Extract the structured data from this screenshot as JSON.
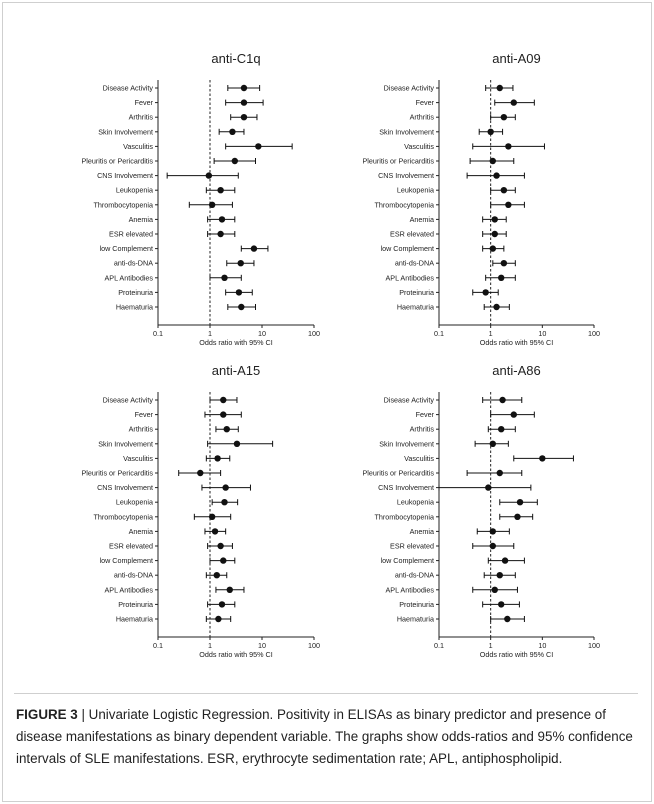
{
  "categories": [
    "Disease Activity",
    "Fever",
    "Arthritis",
    "Skin Involvement",
    "Vasculitis",
    "Pleuritis or Pericarditis",
    "CNS Involvement",
    "Leukopenia",
    "Thrombocytopenia",
    "Anemia",
    "ESR elevated",
    "low Complement",
    "anti-ds-DNA",
    "APL Antibodies",
    "Proteinuria",
    "Haematuria"
  ],
  "caption": {
    "label": "FIGURE 3",
    "text": " | Univariate Logistic Regression. Positivity in ELISAs as binary predictor and presence of disease manifestations as binary dependent variable. The graphs show odds-ratios and 95% confidence intervals of SLE manifestations. ESR, erythrocyte sedimentation rate; APL, antiphospholipid."
  },
  "chart_data": [
    {
      "type": "scatter",
      "title": "anti-C1q",
      "xlabel": "Odds ratio with 95% CI",
      "x_scale": "log",
      "xlim": [
        0.1,
        100
      ],
      "x_ticks": [
        "0.1",
        "1",
        "10",
        "100"
      ],
      "reference_line": 1,
      "categories": [
        "Disease Activity",
        "Fever",
        "Arthritis",
        "Skin Involvement",
        "Vasculitis",
        "Pleuritis or Pericarditis",
        "CNS Involvement",
        "Leukopenia",
        "Thrombocytopenia",
        "Anemia",
        "ESR elevated",
        "low Complement",
        "anti-ds-DNA",
        "APL Antibodies",
        "Proteinuria",
        "Haematuria"
      ],
      "odds_ratio": [
        4.5,
        4.5,
        4.5,
        2.7,
        8.5,
        3.0,
        0.95,
        1.6,
        1.1,
        1.7,
        1.6,
        7.0,
        3.9,
        1.9,
        3.6,
        4.0
      ],
      "ci_lower": [
        2.2,
        2.0,
        2.5,
        1.5,
        2.0,
        1.2,
        0.15,
        0.85,
        0.4,
        0.9,
        0.9,
        4.0,
        2.1,
        1.0,
        2.0,
        2.2
      ],
      "ci_upper": [
        9.0,
        10.5,
        8.0,
        4.5,
        38.0,
        7.5,
        3.5,
        3.0,
        2.7,
        3.0,
        3.0,
        13.0,
        7.0,
        4.0,
        6.5,
        7.5
      ]
    },
    {
      "type": "scatter",
      "title": "anti-A09",
      "xlabel": "Odds ratio with 95% CI",
      "x_scale": "log",
      "xlim": [
        0.1,
        100
      ],
      "x_ticks": [
        "0.1",
        "1",
        "10",
        "100"
      ],
      "reference_line": 1,
      "categories": [
        "Disease Activity",
        "Fever",
        "Arthritis",
        "Skin Involvement",
        "Vasculitis",
        "Pleuritis or Pericarditis",
        "CNS Involvement",
        "Leukopenia",
        "Thrombocytopenia",
        "Anemia",
        "ESR elevated",
        "low Complement",
        "anti-ds-DNA",
        "APL Antibodies",
        "Proteinuria",
        "Haematuria"
      ],
      "odds_ratio": [
        1.5,
        2.8,
        1.8,
        1.0,
        2.2,
        1.1,
        1.3,
        1.8,
        2.2,
        1.2,
        1.2,
        1.1,
        1.8,
        1.6,
        0.8,
        1.3
      ],
      "ci_lower": [
        0.8,
        1.2,
        1.0,
        0.6,
        0.45,
        0.4,
        0.35,
        1.0,
        1.0,
        0.7,
        0.7,
        0.7,
        1.1,
        0.8,
        0.45,
        0.75
      ],
      "ci_upper": [
        2.7,
        7.0,
        3.0,
        1.7,
        11.0,
        2.8,
        4.5,
        3.0,
        4.5,
        2.0,
        2.0,
        1.8,
        3.0,
        3.0,
        1.4,
        2.3
      ]
    },
    {
      "type": "scatter",
      "title": "anti-A15",
      "xlabel": "Odds ratio with 95% CI",
      "x_scale": "log",
      "xlim": [
        0.1,
        100
      ],
      "x_ticks": [
        "0.1",
        "1",
        "10",
        "100"
      ],
      "reference_line": 1,
      "categories": [
        "Disease Activity",
        "Fever",
        "Arthritis",
        "Skin Involvement",
        "Vasculitis",
        "Pleuritis or Pericarditis",
        "CNS Involvement",
        "Leukopenia",
        "Thrombocytopenia",
        "Anemia",
        "ESR elevated",
        "low Complement",
        "anti-ds-DNA",
        "APL Antibodies",
        "Proteinuria",
        "Haematuria"
      ],
      "odds_ratio": [
        1.8,
        1.8,
        2.1,
        3.3,
        1.4,
        0.65,
        2.0,
        1.9,
        1.1,
        1.25,
        1.6,
        1.8,
        1.35,
        2.4,
        1.7,
        1.45
      ],
      "ci_lower": [
        1.0,
        0.8,
        1.3,
        0.9,
        0.85,
        0.25,
        0.7,
        1.1,
        0.5,
        0.8,
        0.9,
        1.0,
        0.85,
        1.3,
        0.9,
        0.85
      ],
      "ci_upper": [
        3.3,
        4.0,
        3.5,
        16.0,
        2.4,
        1.6,
        6.0,
        3.4,
        2.5,
        2.0,
        2.7,
        3.0,
        2.1,
        4.5,
        3.0,
        2.5
      ]
    },
    {
      "type": "scatter",
      "title": "anti-A86",
      "xlabel": "Odds ratio with 95% CI",
      "x_scale": "log",
      "xlim": [
        0.1,
        100
      ],
      "x_ticks": [
        "0.1",
        "1",
        "10",
        "100"
      ],
      "reference_line": 1,
      "categories": [
        "Disease Activity",
        "Fever",
        "Arthritis",
        "Skin Involvement",
        "Vasculitis",
        "Pleuritis or Pericarditis",
        "CNS Involvement",
        "Leukopenia",
        "Thrombocytopenia",
        "Anemia",
        "ESR elevated",
        "low Complement",
        "anti-ds-DNA",
        "APL Antibodies",
        "Proteinuria",
        "Haematuria"
      ],
      "odds_ratio": [
        1.7,
        2.8,
        1.6,
        1.1,
        10.0,
        1.5,
        0.9,
        3.7,
        3.3,
        1.1,
        1.1,
        1.9,
        1.5,
        1.2,
        1.6,
        2.1
      ],
      "ci_lower": [
        0.7,
        1.0,
        0.9,
        0.5,
        2.8,
        0.35,
        0.1,
        1.5,
        1.5,
        0.55,
        0.45,
        0.9,
        0.75,
        0.45,
        0.7,
        1.0
      ],
      "ci_upper": [
        4.0,
        7.0,
        3.0,
        2.2,
        40.0,
        4.0,
        6.0,
        8.0,
        6.5,
        2.3,
        2.8,
        4.5,
        3.0,
        3.3,
        3.6,
        4.5
      ]
    }
  ]
}
